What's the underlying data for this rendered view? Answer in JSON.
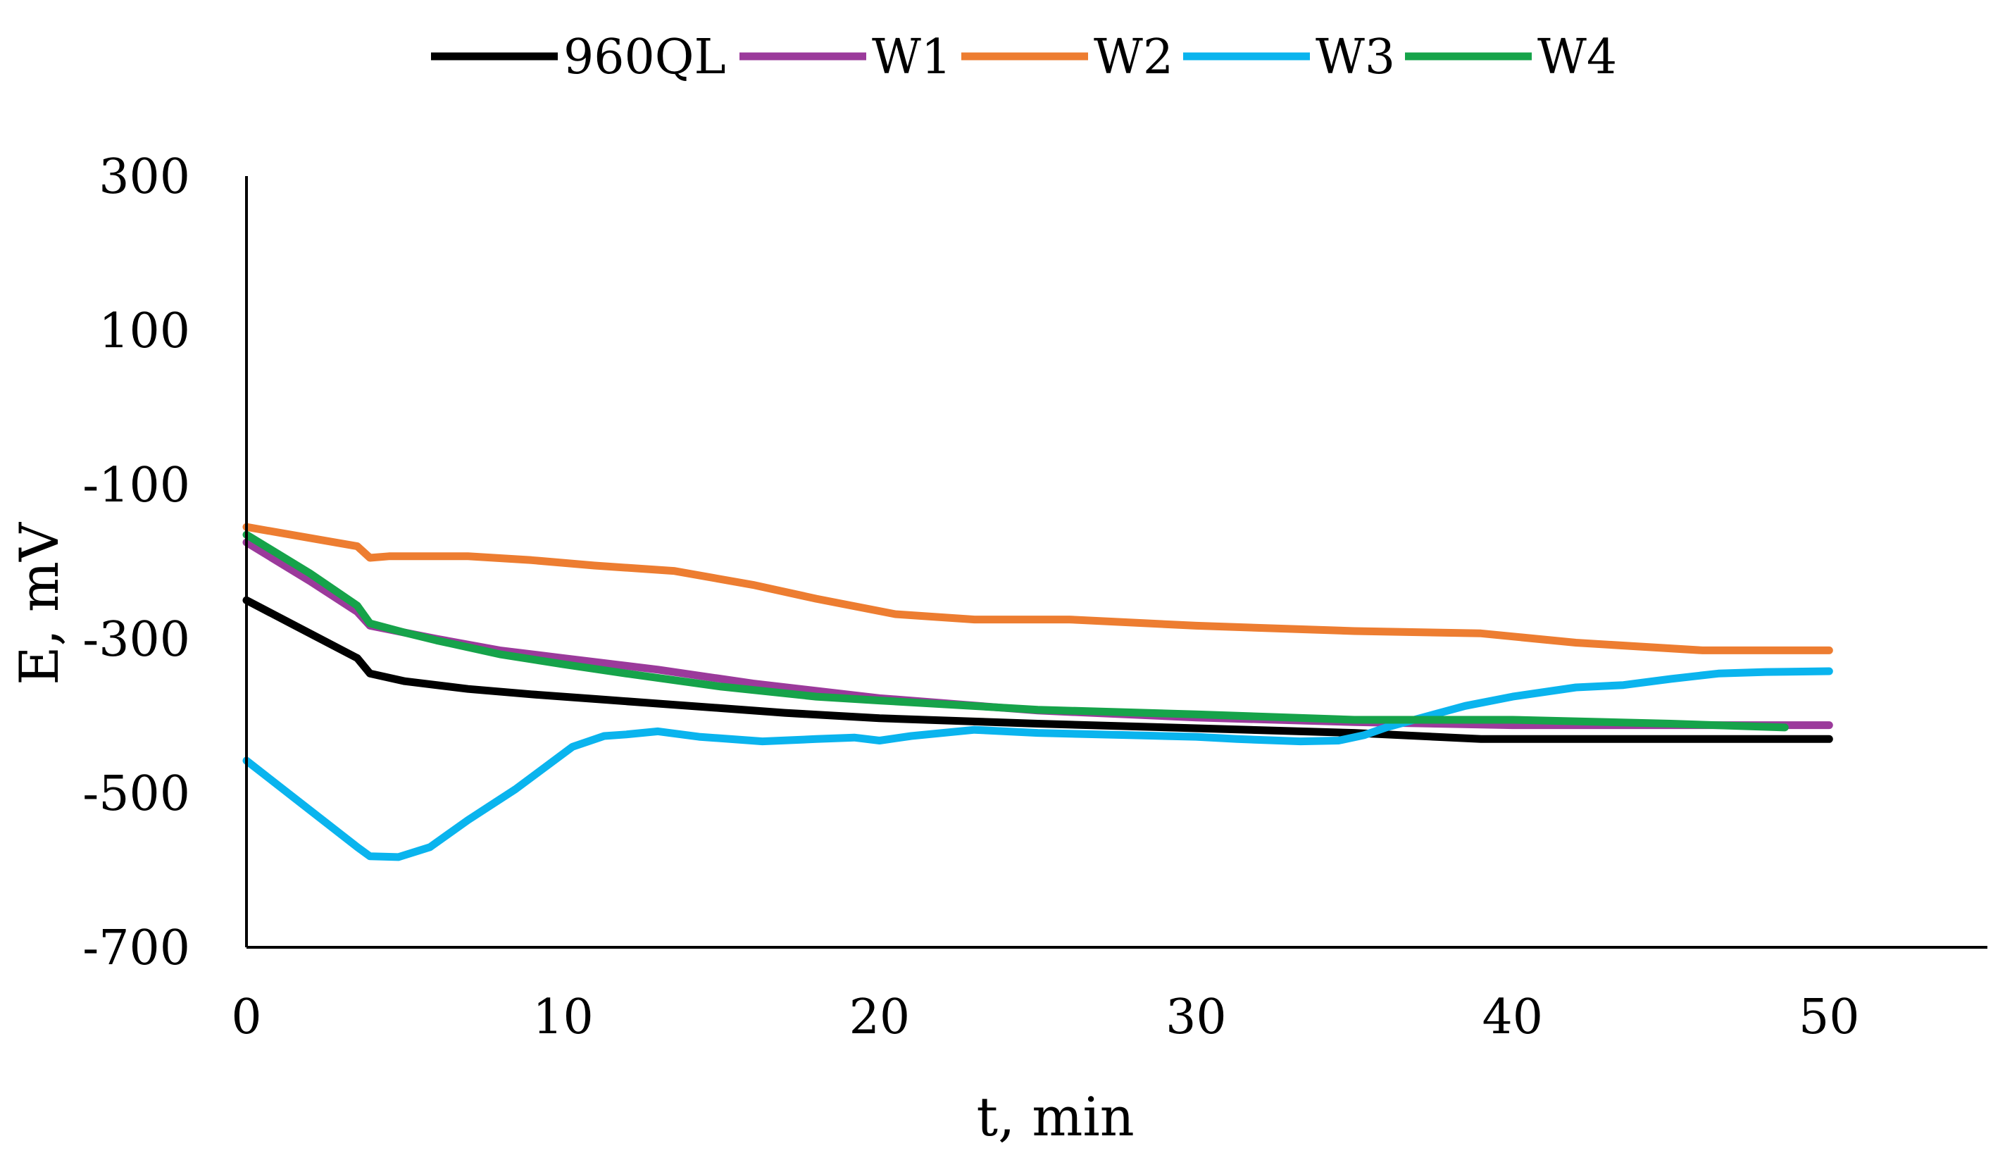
{
  "chart_data": {
    "type": "line",
    "title": "",
    "xlabel": "t, min",
    "ylabel": "E, mV",
    "xlim": [
      0,
      55
    ],
    "ylim": [
      -700,
      300
    ],
    "xticks": [
      0,
      10,
      20,
      30,
      40,
      50
    ],
    "yticks": [
      300,
      100,
      -100,
      -300,
      -500,
      -700
    ],
    "grid": false,
    "legend_position": "top",
    "series": [
      {
        "name": "960QL",
        "color": "#000000",
        "x": [
          0,
          3.5,
          3.9,
          5,
          7,
          9,
          11,
          13,
          15,
          17,
          20,
          25,
          30,
          35,
          39,
          45,
          50
        ],
        "y": [
          -250,
          -325,
          -345,
          -355,
          -365,
          -372,
          -378,
          -384,
          -390,
          -396,
          -403,
          -410,
          -416,
          -422,
          -430,
          -430,
          -430
        ]
      },
      {
        "name": "W1",
        "color": "#9b3a9b",
        "x": [
          0,
          2,
          3.5,
          3.9,
          5,
          6,
          8,
          10,
          13,
          16,
          20,
          25,
          30,
          35,
          40,
          45,
          50
        ],
        "y": [
          -175,
          -225,
          -265,
          -283,
          -292,
          -300,
          -315,
          -325,
          -340,
          -358,
          -377,
          -393,
          -402,
          -408,
          -412,
          -412,
          -412
        ]
      },
      {
        "name": "W2",
        "color": "#ed7d31",
        "x": [
          0,
          3.5,
          3.9,
          4.5,
          7,
          9,
          11,
          13.5,
          16,
          18,
          20.5,
          23,
          26,
          30,
          35,
          39,
          42,
          46,
          50
        ],
        "y": [
          -155,
          -180,
          -195,
          -193,
          -193,
          -198,
          -205,
          -212,
          -230,
          -248,
          -268,
          -275,
          -275,
          -283,
          -290,
          -293,
          -305,
          -315,
          -315
        ]
      },
      {
        "name": "W3",
        "color": "#0ab4ee",
        "x": [
          0,
          3.5,
          3.9,
          4.8,
          5.8,
          7,
          8.5,
          10.3,
          11.3,
          12,
          13,
          14.3,
          16.3,
          18,
          19.2,
          20,
          21,
          23,
          25,
          28,
          30,
          31.3,
          33.3,
          34.5,
          35.3,
          36,
          38.5,
          40,
          42,
          43.5,
          45,
          46.5,
          48,
          50
        ],
        "y": [
          -458,
          -570,
          -582,
          -583,
          -570,
          -535,
          -495,
          -440,
          -426,
          -424,
          -420,
          -427,
          -433,
          -430,
          -428,
          -432,
          -426,
          -418,
          -422,
          -425,
          -427,
          -430,
          -433,
          -432,
          -425,
          -415,
          -387,
          -375,
          -363,
          -360,
          -352,
          -345,
          -343,
          -342
        ]
      },
      {
        "name": "W4",
        "color": "#16a34a",
        "x": [
          0,
          2,
          3.5,
          3.9,
          5,
          6,
          8,
          10,
          12,
          15,
          18,
          20,
          25,
          30,
          35,
          40,
          45,
          48.6
        ],
        "y": [
          -165,
          -215,
          -257,
          -280,
          -292,
          -302,
          -320,
          -333,
          -345,
          -362,
          -375,
          -380,
          -392,
          -398,
          -405,
          -405,
          -410,
          -415
        ]
      }
    ]
  }
}
